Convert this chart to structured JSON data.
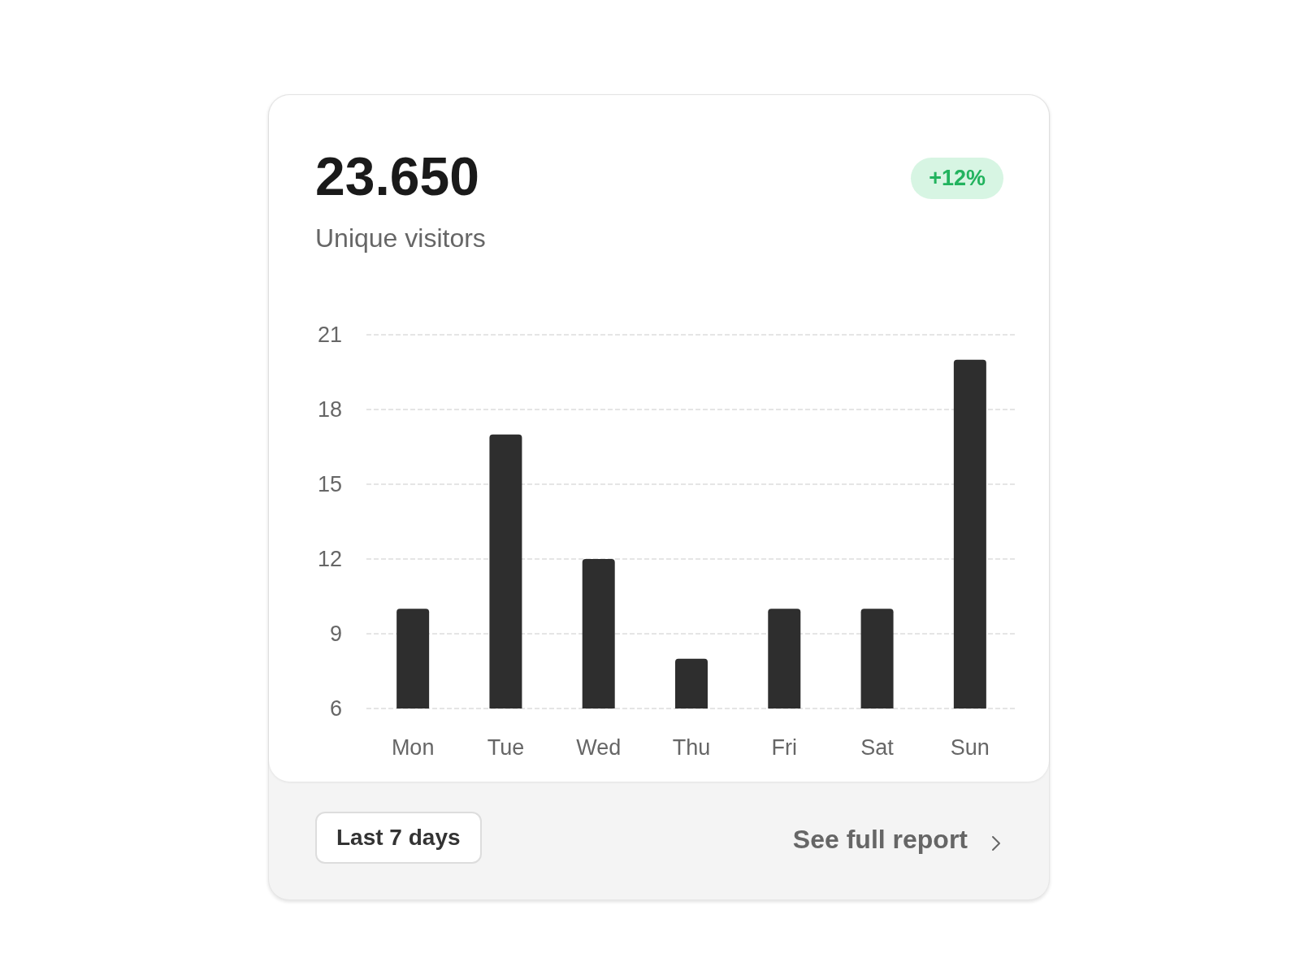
{
  "chart_data": {
    "type": "bar",
    "title": "23.650",
    "subtitle": "Unique visitors",
    "categories": [
      "Mon",
      "Tue",
      "Wed",
      "Thu",
      "Fri",
      "Sat",
      "Sun"
    ],
    "values": [
      10,
      17,
      12,
      8,
      10,
      10,
      20
    ],
    "color": "#2e2e2e",
    "ylim": [
      6,
      21
    ],
    "yticks": [
      6,
      9,
      12,
      15,
      18,
      21
    ],
    "grid": "y",
    "annotations": [
      "+12%",
      "Last 7 days",
      "See full report"
    ]
  }
}
